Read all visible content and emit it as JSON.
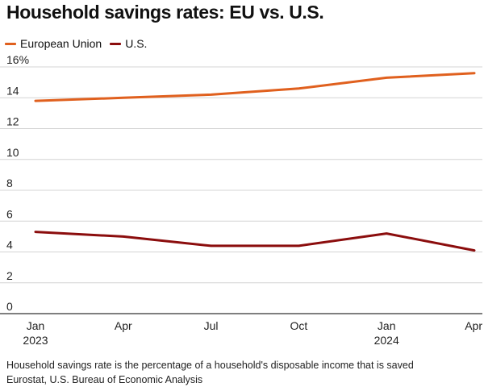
{
  "header": {
    "title": "Household savings rates: EU vs. U.S."
  },
  "footer": {
    "note": "Household savings rate is the percentage of a household's disposable income that is saved",
    "source": "Eurostat, U.S. Bureau of Economic Analysis"
  },
  "chart_data": {
    "type": "line",
    "title": "Household savings rates: EU vs. U.S.",
    "xlabel": "",
    "ylabel": "",
    "x": [
      "Jan 2023",
      "Apr 2023",
      "Jul 2023",
      "Oct 2023",
      "Jan 2024",
      "Apr 2024"
    ],
    "x_tick_labels": [
      {
        "line1": "Jan",
        "line2": "2023"
      },
      {
        "line1": "Apr",
        "line2": ""
      },
      {
        "line1": "Jul",
        "line2": ""
      },
      {
        "line1": "Oct",
        "line2": ""
      },
      {
        "line1": "Jan",
        "line2": "2024"
      },
      {
        "line1": "Apr",
        "line2": ""
      }
    ],
    "ylim": [
      0,
      16
    ],
    "y_ticks": [
      0,
      2,
      4,
      6,
      8,
      10,
      12,
      14,
      16
    ],
    "y_tick_labels": [
      "0",
      "2",
      "4",
      "6",
      "8",
      "10",
      "12",
      "14",
      "16%"
    ],
    "grid": true,
    "legend": "top-left",
    "series": [
      {
        "name": "European Union",
        "color": "#e0601e",
        "values": [
          13.8,
          14.0,
          14.2,
          14.6,
          15.3,
          15.6
        ]
      },
      {
        "name": "U.S.",
        "color": "#8b0d0d",
        "values": [
          5.3,
          5.0,
          4.4,
          4.4,
          5.2,
          4.1
        ]
      }
    ]
  }
}
